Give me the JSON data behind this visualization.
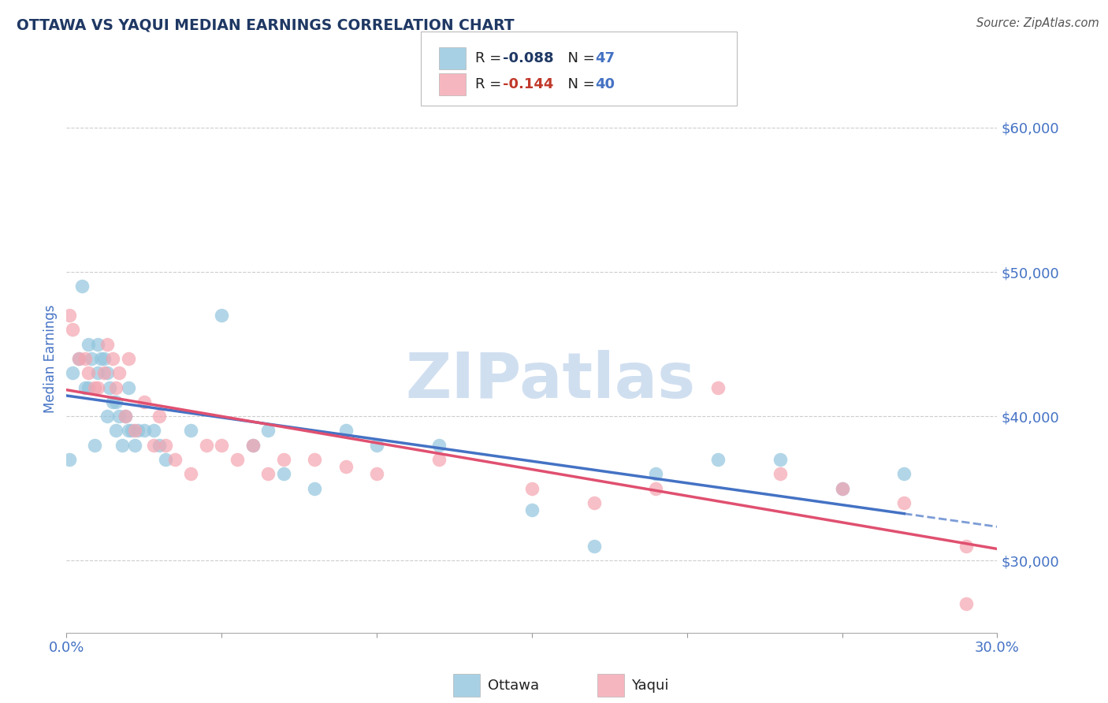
{
  "title": "OTTAWA VS YAQUI MEDIAN EARNINGS CORRELATION CHART",
  "source": "Source: ZipAtlas.com",
  "ylabel": "Median Earnings",
  "xlim": [
    0.0,
    0.3
  ],
  "ylim": [
    25000,
    63000
  ],
  "xticks": [
    0.0,
    0.05,
    0.1,
    0.15,
    0.2,
    0.25,
    0.3
  ],
  "xticklabels": [
    "0.0%",
    "",
    "",
    "",
    "",
    "",
    "30.0%"
  ],
  "yticks": [
    30000,
    40000,
    50000,
    60000
  ],
  "yticklabels": [
    "$30,000",
    "$40,000",
    "$50,000",
    "$60,000"
  ],
  "ottawa_color": "#92c5de",
  "yaqui_color": "#f4a4b0",
  "ottawa_R": "-0.088",
  "ottawa_N": 47,
  "yaqui_R": "-0.144",
  "yaqui_N": 40,
  "title_color": "#1f3864",
  "axis_label_color": "#4472c4",
  "tick_color": "#4472c4",
  "r_value_color": "#1f3864",
  "n_value_color": "#4472c4",
  "source_color": "#555555",
  "grid_color": "#c8c8c8",
  "bg_color": "#ffffff",
  "watermark_text": "ZIPatlas",
  "watermark_color": "#d0dff0",
  "trend_blue": "#4472c4",
  "trend_pink": "#e05070",
  "ottawa_x": [
    0.001,
    0.002,
    0.004,
    0.005,
    0.006,
    0.007,
    0.007,
    0.008,
    0.009,
    0.01,
    0.01,
    0.011,
    0.012,
    0.013,
    0.013,
    0.014,
    0.015,
    0.016,
    0.016,
    0.017,
    0.018,
    0.019,
    0.02,
    0.02,
    0.021,
    0.022,
    0.023,
    0.025,
    0.028,
    0.03,
    0.032,
    0.04,
    0.05,
    0.06,
    0.065,
    0.07,
    0.08,
    0.09,
    0.1,
    0.12,
    0.15,
    0.17,
    0.19,
    0.21,
    0.23,
    0.25,
    0.27
  ],
  "ottawa_y": [
    37000,
    43000,
    44000,
    49000,
    42000,
    42000,
    45000,
    44000,
    38000,
    43000,
    45000,
    44000,
    44000,
    43000,
    40000,
    42000,
    41000,
    41000,
    39000,
    40000,
    38000,
    40000,
    42000,
    39000,
    39000,
    38000,
    39000,
    39000,
    39000,
    38000,
    37000,
    39000,
    47000,
    38000,
    39000,
    36000,
    35000,
    39000,
    38000,
    38000,
    33500,
    31000,
    36000,
    37000,
    37000,
    35000,
    36000
  ],
  "yaqui_x": [
    0.001,
    0.002,
    0.004,
    0.006,
    0.007,
    0.009,
    0.01,
    0.012,
    0.013,
    0.015,
    0.016,
    0.017,
    0.019,
    0.02,
    0.022,
    0.025,
    0.028,
    0.03,
    0.032,
    0.035,
    0.04,
    0.045,
    0.05,
    0.055,
    0.06,
    0.065,
    0.07,
    0.08,
    0.09,
    0.1,
    0.12,
    0.15,
    0.17,
    0.19,
    0.21,
    0.23,
    0.25,
    0.27,
    0.29,
    0.29
  ],
  "yaqui_y": [
    47000,
    46000,
    44000,
    44000,
    43000,
    42000,
    42000,
    43000,
    45000,
    44000,
    42000,
    43000,
    40000,
    44000,
    39000,
    41000,
    38000,
    40000,
    38000,
    37000,
    36000,
    38000,
    38000,
    37000,
    38000,
    36000,
    37000,
    37000,
    36500,
    36000,
    37000,
    35000,
    34000,
    35000,
    42000,
    36000,
    35000,
    34000,
    31000,
    27000
  ]
}
